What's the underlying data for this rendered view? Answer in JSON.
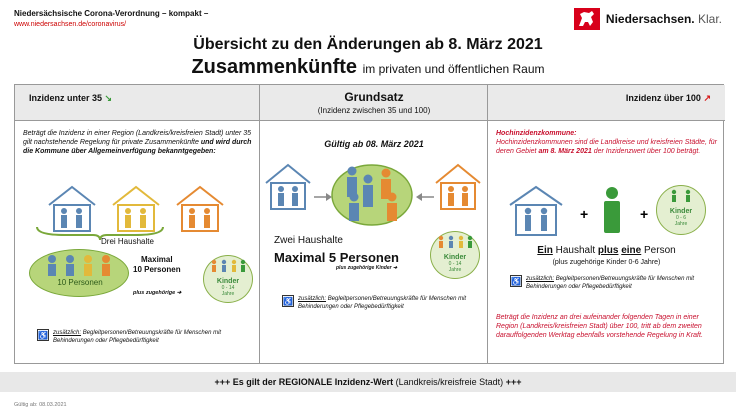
{
  "header": {
    "top_title": "Niedersächsische Corona-Verordnung – kompakt –",
    "url": "www.niedersachsen.de/coronavirus/",
    "logo_text": "Niedersachsen.",
    "logo_suffix": "Klar."
  },
  "title": {
    "line1": "Übersicht zu den Änderungen ab 8. März 2021",
    "line2_main": "Zusammenkünfte",
    "line2_sub": "im privaten und öffentlichen Raum"
  },
  "col1": {
    "head": "Inzidenz unter 35",
    "text_pre": "Beträgt die Inzidenz in einer Region (Landkreis/kreisfreien Stadt) unter 35 gilt nachstehende Regelung für private Zusammenkünfte",
    "text_bold": "und wird durch die Kommune über Allgemeinverfügung bekanntgegeben:",
    "drei": "Drei Haushalte",
    "max1": "Maximal",
    "max2": "10 Personen",
    "ellipse_label": "10 Personen",
    "plus": "plus zugehörige",
    "kinder": "Kinder",
    "kinder_sub1": "0 - 14",
    "kinder_sub2": "Jahre",
    "acc_u": "zusätzlich:",
    "acc_text": "Begleitpersonen/Betreuungskräfte für Menschen mit Behinderungen oder Pflegebedürftigkeit"
  },
  "col2": {
    "head": "Grundsatz",
    "head_sub": "(Inzidenz zwischen 35 und 100)",
    "gueltig": "Gültig ab 08. März 2021",
    "zwei": "Zwei Haushalte",
    "max": "Maximal 5 Personen",
    "plus": "plus zugehörige Kinder",
    "kinder": "Kinder",
    "kinder_sub1": "0 - 14",
    "kinder_sub2": "Jahre",
    "acc_u": "zusätzlich:",
    "acc_text": "Begleitpersonen/Betreuungskräfte für Menschen mit Behinderungen oder Pflegebedürftigkeit"
  },
  "col3": {
    "head": "Inzidenz über 100",
    "red_title": "Hochinzidenzkommune:",
    "red_text_pre": "Hochinzidenzkommunen sind die Landkreise und kreisfreien Städte, für deren Gebiet",
    "red_text_bold": "am 8. März 2021",
    "red_text_post": "der Inzidenzwert über 100 beträgt.",
    "kinder": "Kinder",
    "kinder_sub1": "0 - 6",
    "kinder_sub2": "Jahre",
    "ein_a": "Ein",
    "ein_b": "Haushalt",
    "ein_c": "plus",
    "ein_d": "eine",
    "ein_e": "Person",
    "ein_sub": "(plus zugehörige Kinder 0-6 Jahre)",
    "acc_u": "zusätzlich:",
    "acc_text": "Begleitpersonen/Betreuungskräfte für Menschen mit Behinderungen oder Pflegebedürftigkeit",
    "red2": "Beträgt die Inzidenz an drei aufeinander folgenden Tagen in einer Region (Landkreis/kreisfreien Stadt) über 100, tritt ab dem zweiten darauffolgenden Werktag ebenfalls vorstehende Regelung in Kraft."
  },
  "footer": {
    "band_bold": "+++ Es gilt der REGIONALE Inzidenz-Wert",
    "band_normal": "(Landkreis/kreisfreie Stadt)",
    "band_end": "+++",
    "date": "Gültig ab: 08.03.2021"
  },
  "colors": {
    "green": "#8ab04a",
    "red": "#c8102e",
    "blue_house": "#5b86b3",
    "orange": "#e58a32"
  }
}
